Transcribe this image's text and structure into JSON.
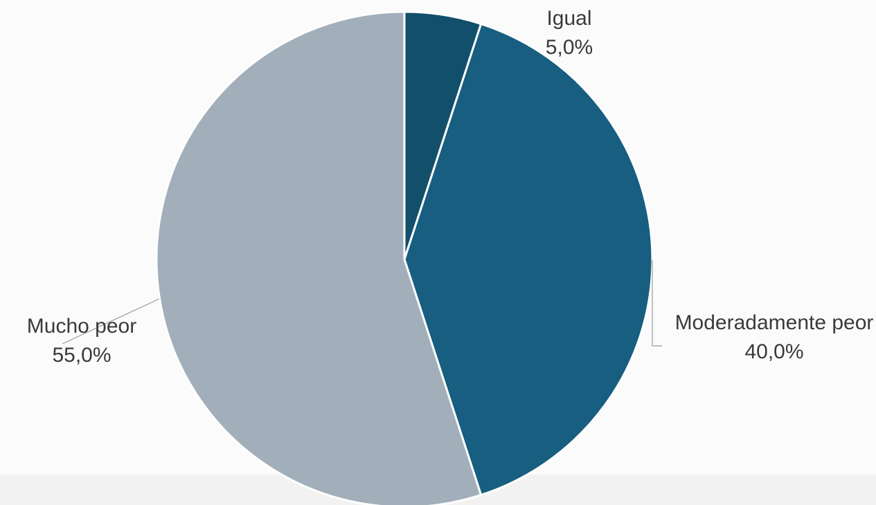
{
  "chart_data": {
    "type": "pie",
    "categories": [
      "Igual",
      "Moderadamente peor",
      "Mucho peor"
    ],
    "values": [
      5,
      40,
      55
    ],
    "value_labels": [
      "5,0%",
      "40,0%",
      "55,0%"
    ],
    "colors": [
      "#124f6b",
      "#175e80",
      "#a2afba"
    ]
  }
}
